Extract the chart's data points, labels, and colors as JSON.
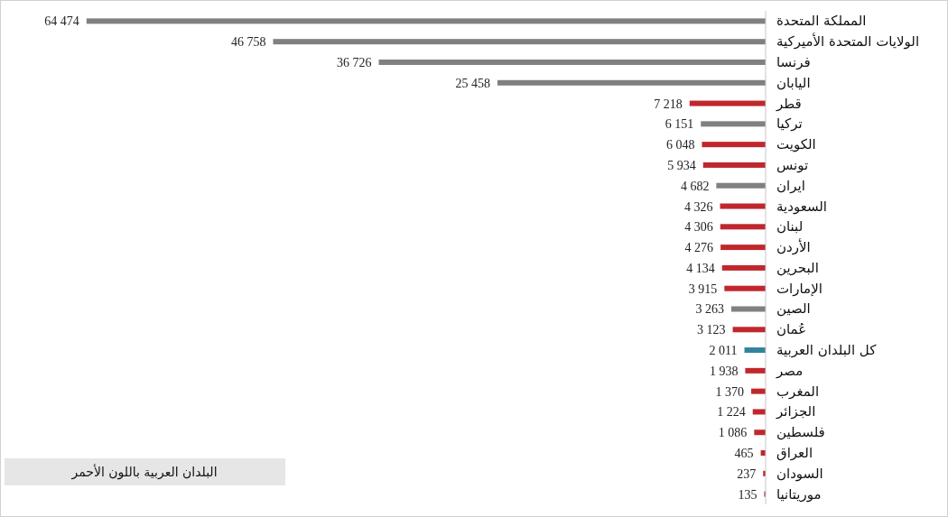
{
  "chart_data": {
    "type": "bar",
    "orientation": "horizontal",
    "categories": [
      "المملكة المتحدة",
      "الولايات المتحدة الأميركية",
      "فرنسا",
      "اليابان",
      "قطر",
      "تركيا",
      "الكويت",
      "تونس",
      "ايران",
      "السعودية",
      "لبنان",
      "الأردن",
      "البحرين",
      "الإمارات",
      "الصين",
      "عُمان",
      "كل البلدان العربية",
      "مصر",
      "المغرب",
      "الجزائر",
      "فلسطين",
      "العراق",
      "السودان",
      "موريتانيا"
    ],
    "values": [
      64474,
      46758,
      36726,
      25458,
      7218,
      6151,
      6048,
      5934,
      4682,
      4326,
      4306,
      4276,
      4134,
      3915,
      3263,
      3123,
      2011,
      1938,
      1370,
      1224,
      1086,
      465,
      237,
      135
    ],
    "value_labels": [
      "64 474",
      "46 758",
      "36 726",
      "25 458",
      "7 218",
      "6 151",
      "6 048",
      "5 934",
      "4 682",
      "4 326",
      "4 306",
      "4 276",
      "4 134",
      "3 915",
      "3 263",
      "3 123",
      "2 011",
      "1 938",
      "1 370",
      "1 224",
      "1 086",
      "465",
      "237",
      "135"
    ],
    "colors": [
      "#808080",
      "#808080",
      "#808080",
      "#808080",
      "#c0272d",
      "#808080",
      "#c0272d",
      "#c0272d",
      "#808080",
      "#c0272d",
      "#c0272d",
      "#c0272d",
      "#c0272d",
      "#c0272d",
      "#808080",
      "#c0272d",
      "#31849b",
      "#c0272d",
      "#c0272d",
      "#c0272d",
      "#c0272d",
      "#c0272d",
      "#c0272d",
      "#c0272d"
    ],
    "xlim": [
      72000,
      0
    ],
    "annotations": [
      "البلدان العربية باللون الأحمر"
    ]
  }
}
